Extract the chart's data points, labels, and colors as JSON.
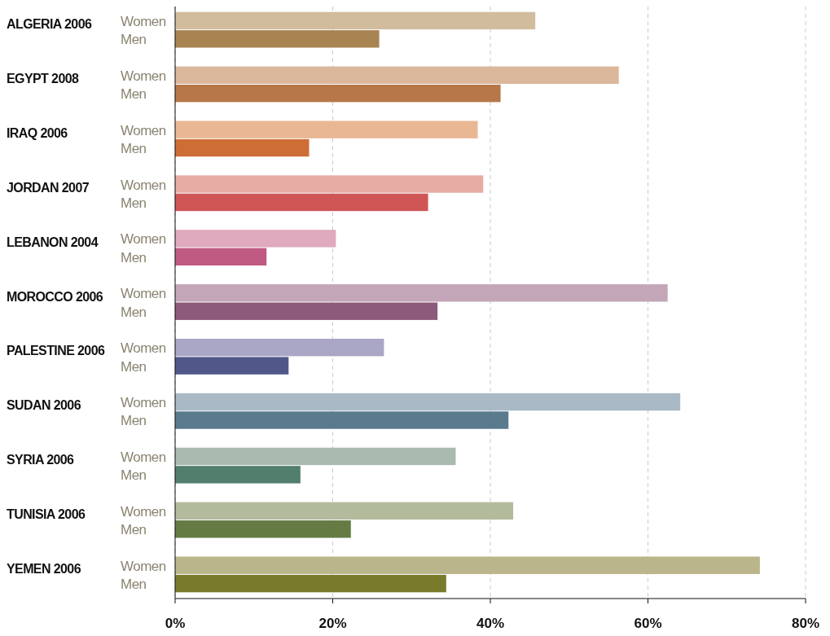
{
  "chart_data": {
    "type": "bar",
    "orientation": "horizontal",
    "categories": [
      "ALGERIA 2006",
      "EGYPT 2008",
      "IRAQ 2006",
      "JORDAN 2007",
      "LEBANON 2004",
      "MOROCCO 2006",
      "PALESTINE 2006",
      "SUDAN 2006",
      "SYRIA 2006",
      "TUNISIA 2006",
      "YEMEN 2006"
    ],
    "series": [
      {
        "name": "Women",
        "colors": [
          "#d1bc9e",
          "#dbb79c",
          "#e9b794",
          "#e7ada5",
          "#dfaabe",
          "#c3a7b8",
          "#aaa6c5",
          "#a9b9c6",
          "#a9bab0",
          "#b3bb9d",
          "#bab58a"
        ],
        "values": [
          45.7,
          56.3,
          38.4,
          39.1,
          20.4,
          62.5,
          26.5,
          64.1,
          35.6,
          42.9,
          74.2
        ]
      },
      {
        "name": "Men",
        "colors": [
          "#a88452",
          "#b77749",
          "#cd6e36",
          "#d05555",
          "#c05a82",
          "#8e5a7b",
          "#52578a",
          "#5a7a8e",
          "#527e6e",
          "#647c44",
          "#7a7a2c"
        ],
        "values": [
          25.9,
          41.3,
          17.0,
          32.1,
          11.6,
          33.3,
          14.4,
          42.3,
          15.9,
          22.3,
          34.4
        ]
      }
    ],
    "xlim": [
      0,
      80
    ],
    "xticks": [
      {
        "value": 0,
        "label": "0%"
      },
      {
        "value": 20,
        "label": "20%"
      },
      {
        "value": 40,
        "label": "40%"
      },
      {
        "value": 60,
        "label": "60%"
      },
      {
        "value": 80,
        "label": "80%"
      }
    ],
    "grid": "x"
  }
}
